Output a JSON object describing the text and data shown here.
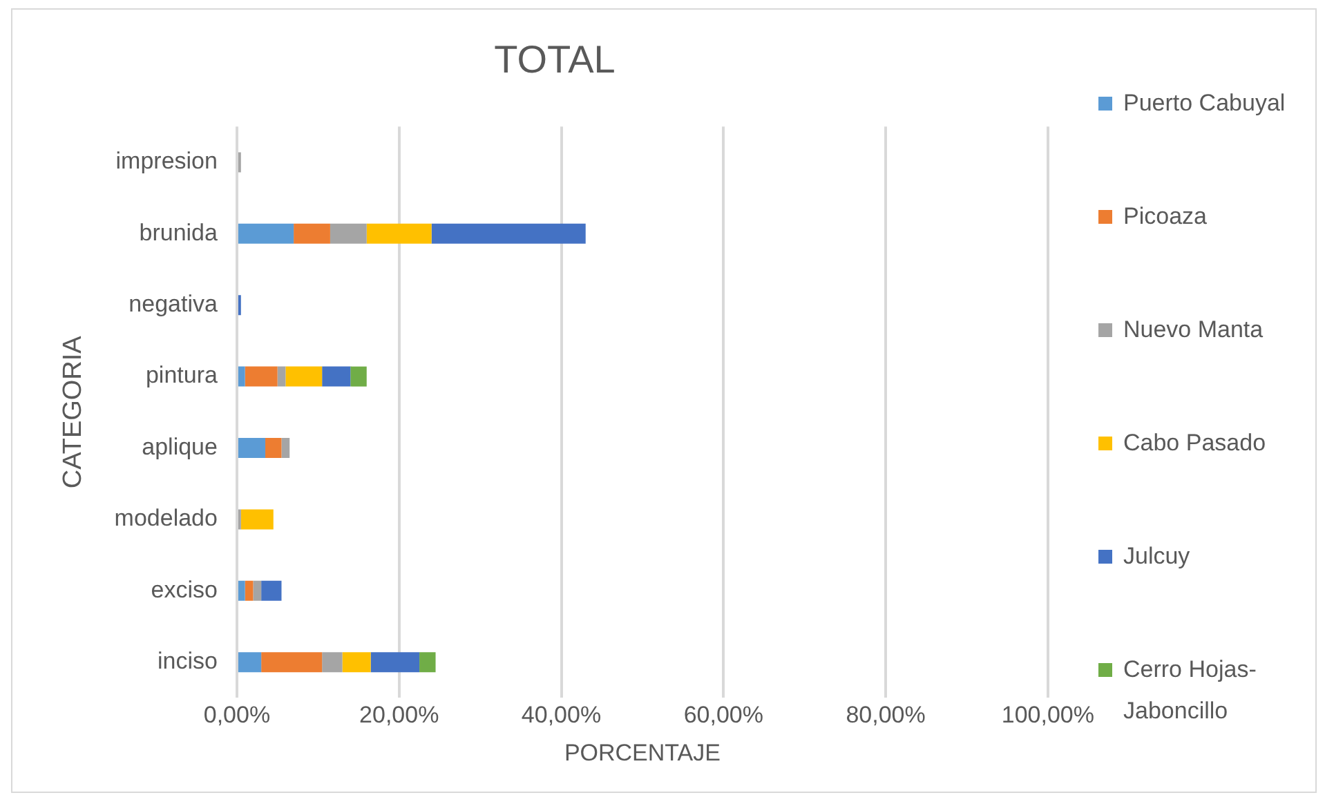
{
  "chart_data": {
    "type": "bar",
    "orientation": "horizontal",
    "stacked": true,
    "title": "TOTAL",
    "xlabel": "PORCENTAJE",
    "ylabel": "CATEGORIA",
    "categories": [
      "impresion",
      "brunida",
      "negativa",
      "pintura",
      "aplique",
      "modelado",
      "exciso",
      "inciso"
    ],
    "series": [
      {
        "name": "Puerto Cabuyal",
        "color": "#5b9bd5",
        "values": [
          null,
          7,
          null,
          1,
          3.5,
          null,
          1,
          3
        ]
      },
      {
        "name": "Picoaza",
        "color": "#ed7d31",
        "values": [
          null,
          4.5,
          null,
          4,
          2,
          null,
          1,
          7.5
        ]
      },
      {
        "name": "Nuevo Manta",
        "color": "#a5a5a5",
        "values": [
          0.5,
          4.5,
          null,
          1,
          1,
          0.5,
          1,
          2.5
        ]
      },
      {
        "name": "Cabo Pasado",
        "color": "#ffc000",
        "values": [
          null,
          8,
          null,
          4.5,
          null,
          4,
          null,
          3.5
        ]
      },
      {
        "name": "Julcuy",
        "color": "#4472c4",
        "values": [
          null,
          19,
          0.5,
          3.5,
          null,
          null,
          2.5,
          6
        ]
      },
      {
        "name": "Cerro Hojas-Jaboncillo",
        "color": "#70ad47",
        "values": [
          null,
          null,
          null,
          2,
          null,
          null,
          null,
          2
        ]
      }
    ],
    "xlim": [
      0,
      100
    ],
    "xticks": [
      {
        "value": 0,
        "label": "0,00%"
      },
      {
        "value": 20,
        "label": "20,00%"
      },
      {
        "value": 40,
        "label": "40,00%"
      },
      {
        "value": 60,
        "label": "60,00%"
      },
      {
        "value": 80,
        "label": "80,00%"
      },
      {
        "value": 100,
        "label": "100,00%"
      }
    ],
    "grid": "x",
    "legend": "right"
  }
}
